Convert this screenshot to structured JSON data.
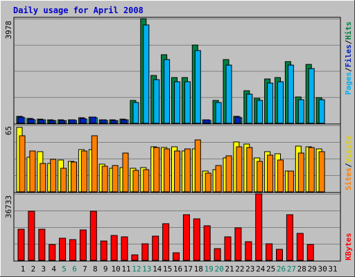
{
  "title": "Daily usage for April 2008",
  "colors": {
    "background": "#c0c0c0",
    "hits": "#008040",
    "files": "#00b0f0",
    "pages": "#0020c0",
    "visits": "#ffff00",
    "sites": "#ff8000",
    "kbytes": "#ff0000",
    "weekday_tick": "#000000",
    "weekend_tick": "#00806a"
  },
  "right_labels": {
    "top": {
      "pages": "Pages",
      "files": "Files",
      "hits": "Hits",
      "separator": "/"
    },
    "middle": {
      "sites": "Sites",
      "visits": "Visits",
      "separator": "/"
    },
    "bottom": {
      "kbytes": "KBytes"
    }
  },
  "chart_data": [
    {
      "type": "bar",
      "title": "Daily usage for April 2008",
      "panel": "hits-files-pages",
      "ymax_label": "3978",
      "ylim": [
        0,
        3978
      ],
      "grid": true,
      "categories": [
        "1",
        "2",
        "3",
        "4",
        "5",
        "6",
        "7",
        "8",
        "9",
        "10",
        "11",
        "12",
        "13",
        "14",
        "15",
        "16",
        "17",
        "18",
        "19",
        "20",
        "21",
        "22",
        "23",
        "24",
        "25",
        "26",
        "27",
        "28",
        "29",
        "30",
        "31"
      ],
      "weekend": [
        "5",
        "6",
        "12",
        "13",
        "19",
        "20",
        "26",
        "27"
      ],
      "series": [
        {
          "name": "Hits",
          "values": [
            260,
            180,
            150,
            130,
            120,
            130,
            200,
            250,
            140,
            120,
            150,
            860,
            3978,
            1820,
            2600,
            1740,
            1740,
            2980,
            130,
            880,
            2420,
            260,
            1240,
            960,
            1690,
            1740,
            2340,
            1000,
            2250,
            980,
            0
          ]
        },
        {
          "name": "Files",
          "values": [
            200,
            140,
            120,
            100,
            100,
            110,
            150,
            200,
            110,
            100,
            120,
            780,
            3750,
            1660,
            2420,
            1580,
            1580,
            2760,
            100,
            790,
            2220,
            200,
            1110,
            860,
            1540,
            1580,
            2200,
            900,
            2090,
            890,
            0
          ]
        },
        {
          "name": "Pages",
          "values": [
            240,
            160,
            130,
            110,
            110,
            120,
            180,
            240,
            120,
            110,
            140,
            0,
            0,
            0,
            0,
            0,
            0,
            0,
            140,
            0,
            0,
            240,
            0,
            0,
            0,
            0,
            0,
            0,
            0,
            0,
            0
          ]
        }
      ]
    },
    {
      "type": "bar",
      "panel": "visits-sites",
      "ymax_label": "65",
      "ylim": [
        0,
        65
      ],
      "grid": true,
      "categories": [
        "1",
        "2",
        "3",
        "4",
        "5",
        "6",
        "7",
        "8",
        "9",
        "10",
        "11",
        "12",
        "13",
        "14",
        "15",
        "16",
        "17",
        "18",
        "19",
        "20",
        "21",
        "22",
        "23",
        "24",
        "25",
        "26",
        "27",
        "28",
        "29",
        "30",
        "31"
      ],
      "series": [
        {
          "name": "Visits",
          "values": [
            63,
            34,
            39,
            28,
            31,
            30,
            41,
            41,
            27,
            23,
            24,
            23,
            24,
            44,
            43,
            44,
            40,
            42,
            20,
            22,
            33,
            49,
            47,
            33,
            39,
            37,
            20,
            45,
            44,
            42,
            0
          ]
        },
        {
          "name": "Sites",
          "values": [
            55,
            40,
            28,
            32,
            23,
            29,
            40,
            55,
            25,
            26,
            38,
            21,
            22,
            43,
            42,
            40,
            42,
            51,
            18,
            26,
            35,
            44,
            43,
            30,
            36,
            31,
            20,
            38,
            43,
            39,
            0
          ]
        }
      ]
    },
    {
      "type": "bar",
      "panel": "kbytes",
      "ymax_label": "36733",
      "ylim": [
        0,
        36733
      ],
      "grid": true,
      "categories": [
        "1",
        "2",
        "3",
        "4",
        "5",
        "6",
        "7",
        "8",
        "9",
        "10",
        "11",
        "12",
        "13",
        "14",
        "15",
        "16",
        "17",
        "18",
        "19",
        "20",
        "21",
        "22",
        "23",
        "24",
        "25",
        "26",
        "27",
        "28",
        "29",
        "30",
        "31"
      ],
      "series": [
        {
          "name": "KBytes",
          "values": [
            17300,
            27300,
            17300,
            8800,
            12300,
            11300,
            16800,
            27000,
            10700,
            13900,
            13100,
            3000,
            9300,
            13500,
            20200,
            4200,
            25400,
            22800,
            19100,
            6600,
            13000,
            18000,
            10200,
            36733,
            9000,
            6200,
            25300,
            14900,
            8800,
            0,
            0
          ]
        }
      ]
    }
  ]
}
